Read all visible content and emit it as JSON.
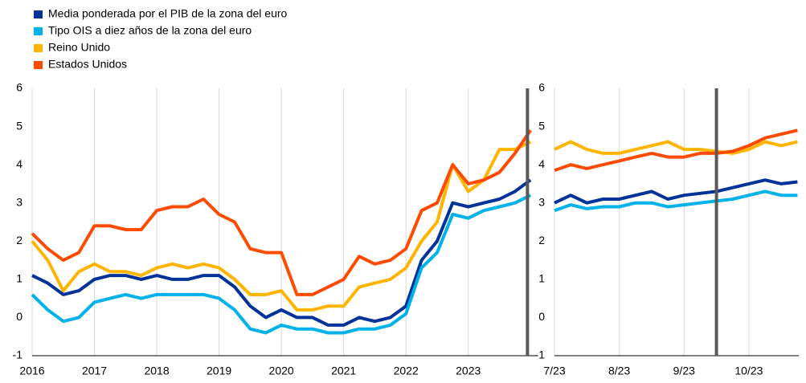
{
  "chart_data": [
    {
      "type": "line",
      "x": [
        2016,
        2016.25,
        2016.5,
        2016.75,
        2017,
        2017.25,
        2017.5,
        2017.75,
        2018,
        2018.25,
        2018.5,
        2018.75,
        2019,
        2019.25,
        2019.5,
        2019.75,
        2020,
        2020.25,
        2020.5,
        2020.75,
        2021,
        2021.25,
        2021.5,
        2021.75,
        2022,
        2022.25,
        2022.5,
        2022.75,
        2023,
        2023.25,
        2023.5,
        2023.75,
        2024
      ],
      "series": [
        {
          "name": "Media ponderada por el PIB de la zona del euro",
          "color": "#003299",
          "values": [
            1.1,
            0.9,
            0.6,
            0.7,
            1.0,
            1.1,
            1.1,
            1.0,
            1.1,
            1.0,
            1.0,
            1.1,
            1.1,
            0.8,
            0.3,
            0.0,
            0.2,
            0.0,
            0.0,
            -0.2,
            -0.2,
            0.0,
            -0.1,
            0.0,
            0.3,
            1.5,
            2.0,
            3.0,
            2.9,
            3.0,
            3.1,
            3.3,
            3.6
          ]
        },
        {
          "name": "Tipo OIS a diez años de la zona del euro",
          "color": "#00b1ea",
          "values": [
            0.6,
            0.2,
            -0.1,
            0.0,
            0.4,
            0.5,
            0.6,
            0.5,
            0.6,
            0.6,
            0.6,
            0.6,
            0.5,
            0.2,
            -0.3,
            -0.4,
            -0.2,
            -0.3,
            -0.3,
            -0.4,
            -0.4,
            -0.3,
            -0.3,
            -0.2,
            0.1,
            1.3,
            1.7,
            2.7,
            2.6,
            2.8,
            2.9,
            3.0,
            3.2
          ]
        },
        {
          "name": "Reino Unido",
          "color": "#ffb400",
          "values": [
            2.0,
            1.5,
            0.7,
            1.2,
            1.4,
            1.2,
            1.2,
            1.1,
            1.3,
            1.4,
            1.3,
            1.4,
            1.3,
            1.0,
            0.6,
            0.6,
            0.7,
            0.2,
            0.2,
            0.3,
            0.3,
            0.8,
            0.9,
            1.0,
            1.3,
            2.0,
            2.5,
            4.0,
            3.3,
            3.6,
            4.4,
            4.4,
            4.6
          ]
        },
        {
          "name": "Estados Unidos",
          "color": "#ff4b00",
          "values": [
            2.2,
            1.8,
            1.5,
            1.7,
            2.4,
            2.4,
            2.3,
            2.3,
            2.8,
            2.9,
            2.9,
            3.1,
            2.7,
            2.5,
            1.8,
            1.7,
            1.7,
            0.6,
            0.6,
            0.8,
            1.0,
            1.6,
            1.4,
            1.5,
            1.8,
            2.8,
            3.0,
            4.0,
            3.5,
            3.6,
            3.8,
            4.3,
            4.9
          ]
        }
      ],
      "xlim": [
        2016,
        2024.1
      ],
      "ylim": [
        -1,
        6
      ],
      "xticks": [
        2016,
        2017,
        2018,
        2019,
        2020,
        2021,
        2022,
        2023
      ],
      "yticks": [
        -1,
        0,
        1,
        2,
        3,
        4,
        5,
        6
      ],
      "vline": 2023.95,
      "grid": true
    },
    {
      "type": "line",
      "x": [
        7,
        7.25,
        7.5,
        7.75,
        8,
        8.25,
        8.5,
        8.75,
        9,
        9.25,
        9.5,
        9.75,
        10,
        10.25,
        10.5,
        10.75
      ],
      "series": [
        {
          "color": "#003299",
          "values": [
            3.0,
            3.2,
            3.0,
            3.1,
            3.1,
            3.2,
            3.3,
            3.1,
            3.2,
            3.25,
            3.3,
            3.4,
            3.5,
            3.6,
            3.5,
            3.55
          ]
        },
        {
          "color": "#00b1ea",
          "values": [
            2.8,
            2.95,
            2.85,
            2.9,
            2.9,
            3.0,
            3.0,
            2.9,
            2.95,
            3.0,
            3.05,
            3.1,
            3.2,
            3.3,
            3.2,
            3.2
          ]
        },
        {
          "color": "#ffb400",
          "values": [
            4.4,
            4.6,
            4.4,
            4.3,
            4.3,
            4.4,
            4.5,
            4.6,
            4.4,
            4.4,
            4.35,
            4.3,
            4.4,
            4.6,
            4.5,
            4.6
          ]
        },
        {
          "color": "#ff4b00",
          "values": [
            3.85,
            4.0,
            3.9,
            4.0,
            4.1,
            4.2,
            4.3,
            4.2,
            4.2,
            4.3,
            4.3,
            4.35,
            4.5,
            4.7,
            4.8,
            4.9
          ]
        }
      ],
      "xlim": [
        7,
        10.77
      ],
      "ylim": [
        -1,
        6
      ],
      "xticks": [
        {
          "value": 7,
          "label": "7/23"
        },
        {
          "value": 8,
          "label": "8/23"
        },
        {
          "value": 9,
          "label": "9/23"
        },
        {
          "value": 10,
          "label": "10/23"
        }
      ],
      "yticks": [
        -1,
        0,
        1,
        2,
        3,
        4,
        5,
        6
      ],
      "vline": 9.5,
      "grid": true
    }
  ]
}
